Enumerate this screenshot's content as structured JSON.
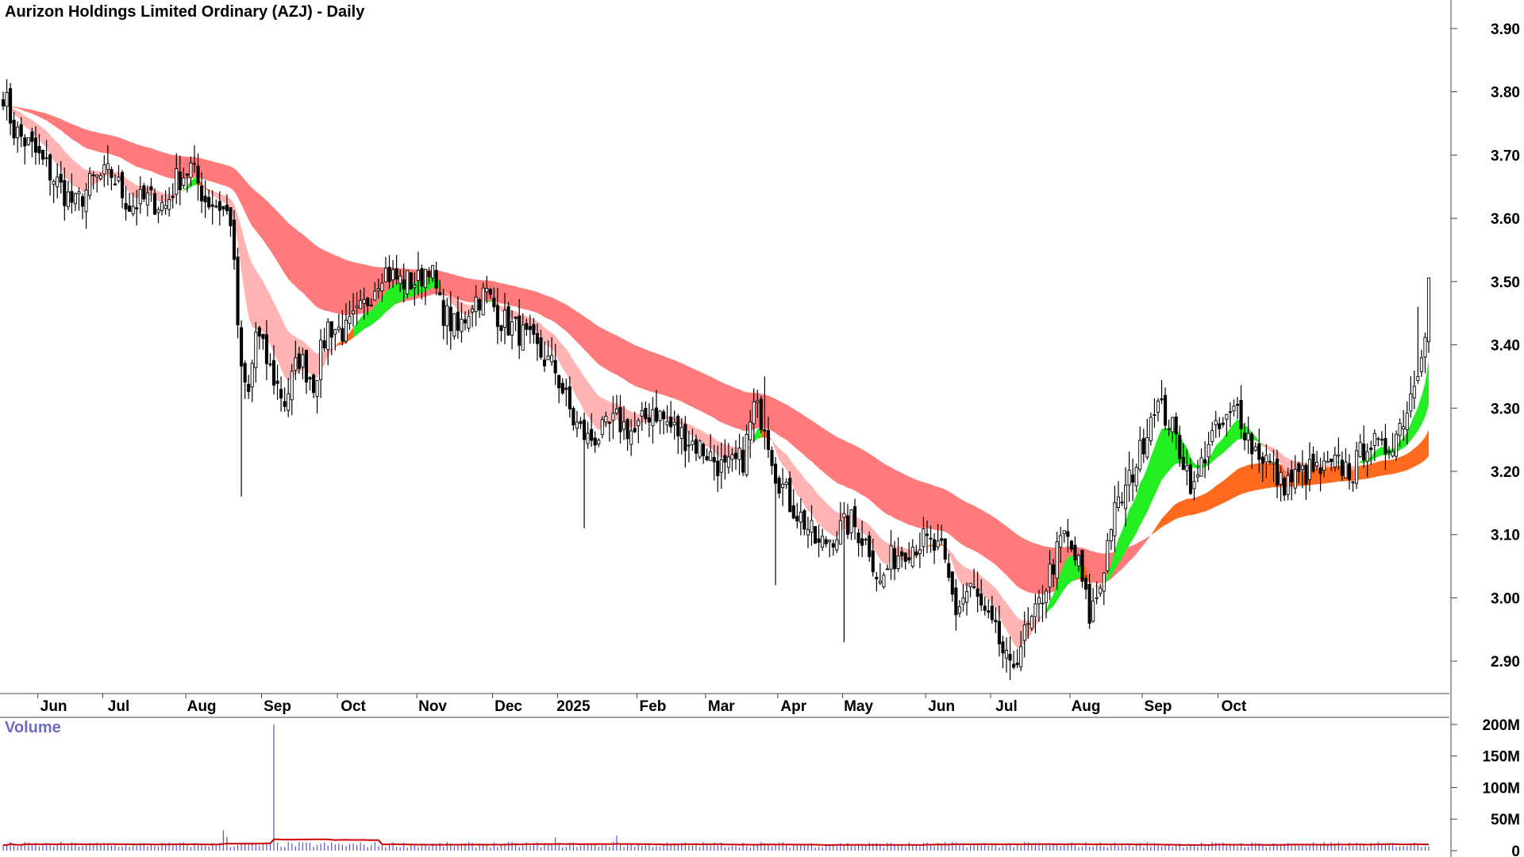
{
  "chart_data": [
    {
      "type": "candlestick",
      "title": "Aurizon Holdings Limited Ordinary (AZJ) - Daily",
      "y_axis": {
        "position": "right",
        "ylim": [
          2.85,
          3.92
        ],
        "ticks": [
          "2.90",
          "3.00",
          "3.10",
          "3.20",
          "3.30",
          "3.40",
          "3.50",
          "3.60",
          "3.70",
          "3.80",
          "3.90"
        ]
      },
      "x_axis": {
        "labels": [
          "Jun",
          "Jul",
          "Aug",
          "Sep",
          "Oct",
          "Nov",
          "Dec",
          "2025",
          "Feb",
          "Mar",
          "Apr",
          "May",
          "Jun",
          "Jul",
          "Aug",
          "Sep",
          "Oct"
        ]
      },
      "close_path": [
        [
          0,
          3.8
        ],
        [
          3,
          3.74
        ],
        [
          8,
          3.71
        ],
        [
          12,
          3.68
        ],
        [
          17,
          3.64
        ],
        [
          20,
          3.62
        ],
        [
          25,
          3.66
        ],
        [
          30,
          3.67
        ],
        [
          35,
          3.62
        ],
        [
          40,
          3.63
        ],
        [
          45,
          3.62
        ],
        [
          48,
          3.66
        ],
        [
          52,
          3.68
        ],
        [
          56,
          3.63
        ],
        [
          60,
          3.62
        ],
        [
          63,
          3.6
        ],
        [
          66,
          3.35
        ],
        [
          68,
          3.32
        ],
        [
          70,
          3.42
        ],
        [
          74,
          3.36
        ],
        [
          78,
          3.31
        ],
        [
          82,
          3.38
        ],
        [
          86,
          3.34
        ],
        [
          90,
          3.43
        ],
        [
          95,
          3.42
        ],
        [
          100,
          3.46
        ],
        [
          105,
          3.52
        ],
        [
          110,
          3.5
        ],
        [
          115,
          3.5
        ],
        [
          118,
          3.53
        ],
        [
          121,
          3.46
        ],
        [
          126,
          3.42
        ],
        [
          130,
          3.47
        ],
        [
          134,
          3.48
        ],
        [
          138,
          3.44
        ],
        [
          143,
          3.42
        ],
        [
          148,
          3.39
        ],
        [
          153,
          3.36
        ],
        [
          158,
          3.28
        ],
        [
          162,
          3.25
        ],
        [
          166,
          3.26
        ],
        [
          170,
          3.28
        ],
        [
          175,
          3.26
        ],
        [
          180,
          3.3
        ],
        [
          185,
          3.27
        ],
        [
          190,
          3.25
        ],
        [
          195,
          3.23
        ],
        [
          200,
          3.2
        ],
        [
          205,
          3.22
        ],
        [
          208,
          3.3
        ],
        [
          211,
          3.28
        ],
        [
          214,
          3.2
        ],
        [
          218,
          3.15
        ],
        [
          222,
          3.12
        ],
        [
          226,
          3.08
        ],
        [
          230,
          3.1
        ],
        [
          235,
          3.12
        ],
        [
          240,
          3.08
        ],
        [
          243,
          3.02
        ],
        [
          246,
          3.06
        ],
        [
          250,
          3.08
        ],
        [
          255,
          3.09
        ],
        [
          260,
          3.07
        ],
        [
          264,
          2.98
        ],
        [
          268,
          3.02
        ],
        [
          272,
          2.97
        ],
        [
          276,
          2.93
        ],
        [
          279,
          2.88
        ],
        [
          282,
          2.93
        ],
        [
          286,
          2.97
        ],
        [
          290,
          3.04
        ],
        [
          294,
          3.1
        ],
        [
          298,
          3.05
        ],
        [
          301,
          2.97
        ],
        [
          304,
          3.02
        ],
        [
          307,
          3.12
        ],
        [
          311,
          3.17
        ],
        [
          315,
          3.23
        ],
        [
          319,
          3.31
        ],
        [
          323,
          3.28
        ],
        [
          327,
          3.22
        ],
        [
          330,
          3.17
        ],
        [
          334,
          3.25
        ],
        [
          338,
          3.27
        ],
        [
          342,
          3.3
        ],
        [
          346,
          3.24
        ],
        [
          350,
          3.22
        ],
        [
          354,
          3.18
        ],
        [
          358,
          3.19
        ],
        [
          362,
          3.2
        ],
        [
          366,
          3.2
        ],
        [
          370,
          3.21
        ],
        [
          374,
          3.2
        ],
        [
          378,
          3.25
        ],
        [
          382,
          3.23
        ],
        [
          386,
          3.26
        ],
        [
          389,
          3.3
        ],
        [
          392,
          3.37
        ],
        [
          394,
          3.43
        ],
        [
          395,
          3.5
        ]
      ],
      "bands": [
        {
          "role": "long-term average band",
          "color": "#ff7a7a"
        },
        {
          "role": "short-term average band",
          "color": "#ffb3b3"
        },
        {
          "role": "band crossover",
          "color": "#ff6a1f"
        },
        {
          "role": "rising band",
          "color": "#22ee22"
        }
      ],
      "colors": {
        "candle": "#000000",
        "grid_axis": "#444444"
      }
    },
    {
      "type": "bar",
      "title": "Volume",
      "y_axis": {
        "position": "right",
        "ylim": [
          0,
          210
        ],
        "ticks": [
          "0",
          "50M",
          "100M",
          "150M",
          "200M"
        ]
      },
      "typical_volume": 10,
      "spikes": [
        {
          "label": "Sep",
          "value": 200
        },
        {
          "label": "Aug",
          "value": 32
        }
      ],
      "colors": {
        "bar": "#5555cc",
        "average": "#cc0000"
      }
    }
  ]
}
